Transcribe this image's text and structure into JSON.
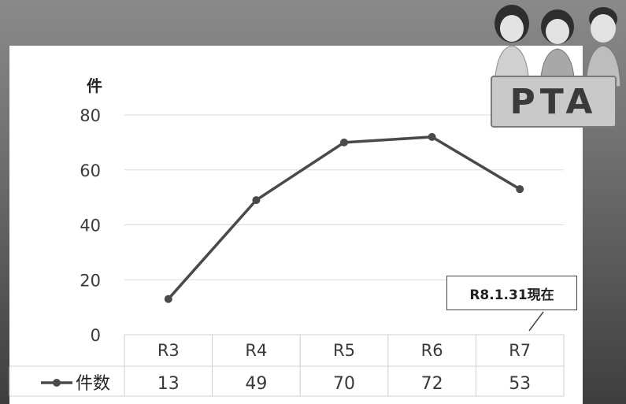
{
  "chart_data": {
    "type": "line",
    "unit_label": "件",
    "ylim": [
      0,
      80
    ],
    "yticks": [
      "0",
      "20",
      "40",
      "60",
      "80"
    ],
    "categories": [
      "R3",
      "R4",
      "R5",
      "R6",
      "R7"
    ],
    "series": [
      {
        "name": "件数",
        "values": [
          13,
          49,
          70,
          72,
          53
        ]
      }
    ],
    "data_table": true,
    "grid": true,
    "annotation": "R8.1.31現在",
    "colors": {
      "line": "#4a4a4a"
    }
  },
  "illustration": {
    "sign_text": "PTA"
  }
}
